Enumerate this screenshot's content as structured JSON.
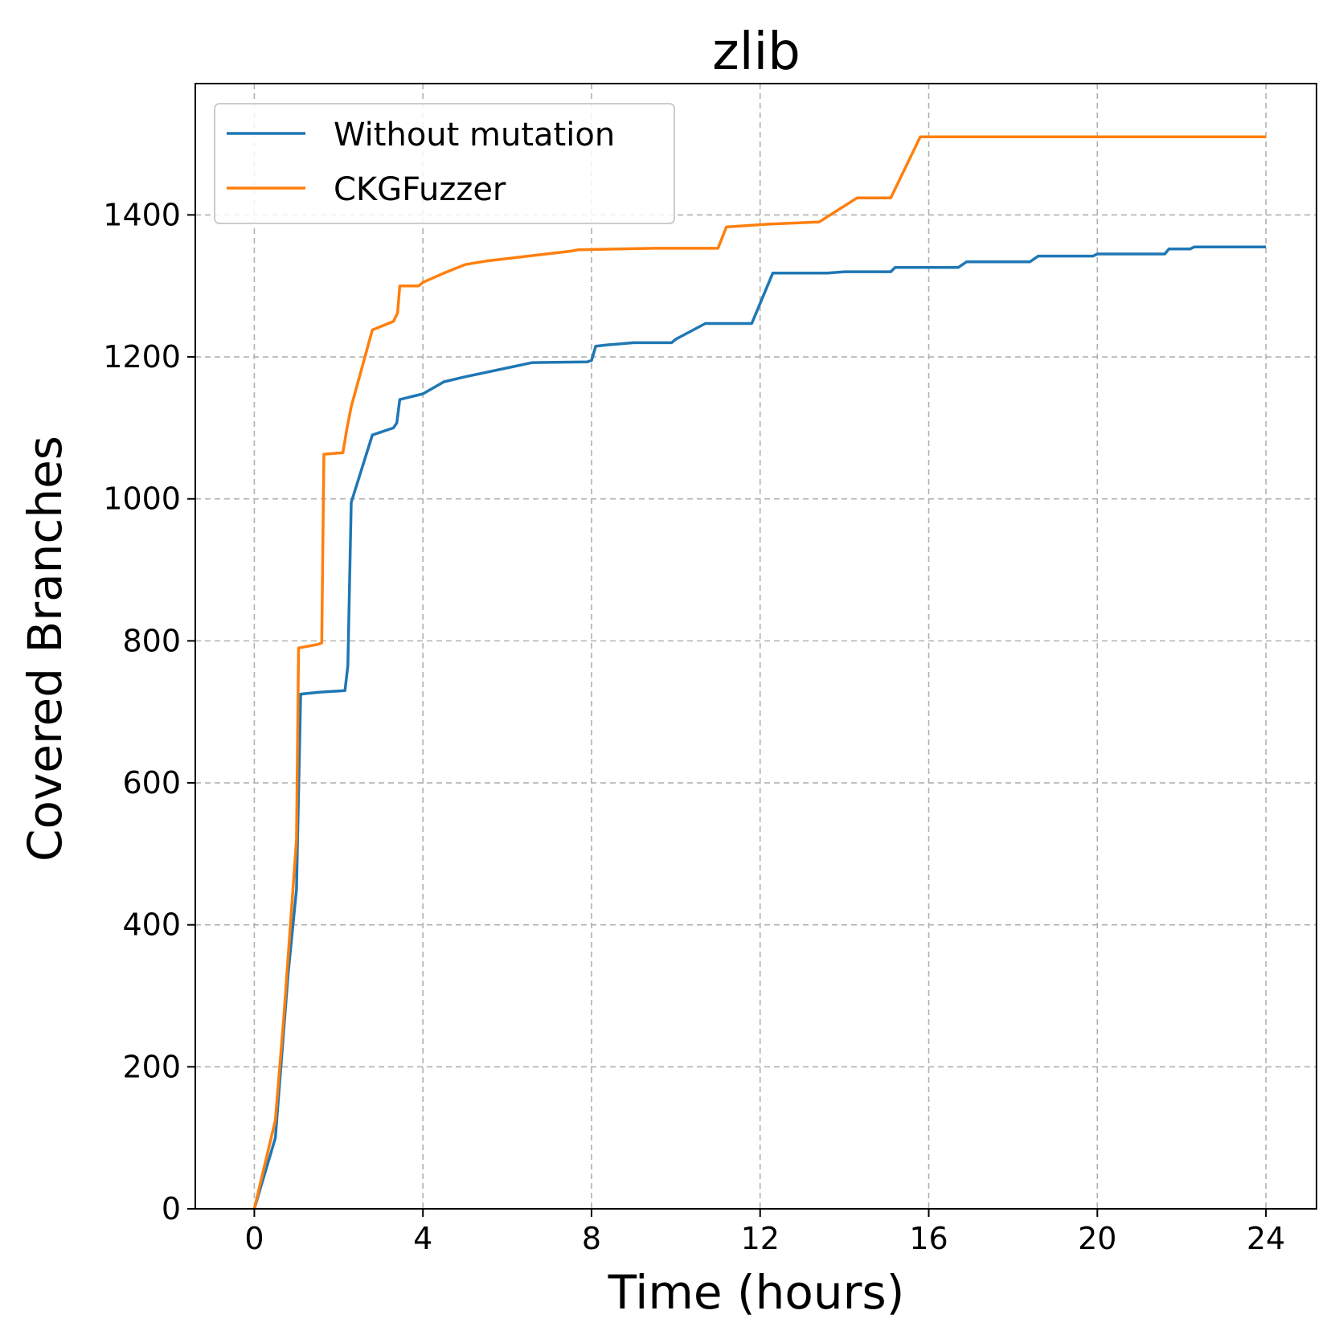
{
  "chart_data": {
    "type": "line",
    "title": "zlib",
    "xlabel": "Time (hours)",
    "ylabel": "Covered Branches",
    "xlim": [
      -1.4,
      25.2
    ],
    "ylim": [
      0,
      1585
    ],
    "xticks": [
      0,
      4,
      8,
      12,
      16,
      20,
      24
    ],
    "yticks": [
      0,
      200,
      400,
      600,
      800,
      1000,
      1200,
      1400
    ],
    "grid": true,
    "legend_position": "top-left",
    "series": [
      {
        "name": "Without mutation",
        "color": "#1f77b4",
        "points": [
          [
            0,
            0
          ],
          [
            0.5,
            100
          ],
          [
            0.8,
            330
          ],
          [
            1.0,
            450
          ],
          [
            1.1,
            725
          ],
          [
            1.6,
            728
          ],
          [
            2.15,
            730
          ],
          [
            2.22,
            765
          ],
          [
            2.3,
            995
          ],
          [
            2.8,
            1090
          ],
          [
            3.3,
            1100
          ],
          [
            3.38,
            1107
          ],
          [
            3.45,
            1140
          ],
          [
            4.0,
            1148
          ],
          [
            4.5,
            1165
          ],
          [
            5.0,
            1172
          ],
          [
            6.6,
            1192
          ],
          [
            7.9,
            1193
          ],
          [
            8.0,
            1195
          ],
          [
            8.1,
            1215
          ],
          [
            8.4,
            1217
          ],
          [
            9.0,
            1220
          ],
          [
            9.9,
            1220
          ],
          [
            10.0,
            1225
          ],
          [
            10.7,
            1247
          ],
          [
            11.8,
            1247
          ],
          [
            12.3,
            1318
          ],
          [
            13.6,
            1318
          ],
          [
            14.0,
            1320
          ],
          [
            15.1,
            1320
          ],
          [
            15.2,
            1326
          ],
          [
            16.7,
            1326
          ],
          [
            16.9,
            1334
          ],
          [
            18.4,
            1334
          ],
          [
            18.5,
            1338
          ],
          [
            18.6,
            1342
          ],
          [
            19.9,
            1342
          ],
          [
            20.0,
            1345
          ],
          [
            21.6,
            1345
          ],
          [
            21.7,
            1352
          ],
          [
            22.2,
            1352
          ],
          [
            22.3,
            1355
          ],
          [
            24.0,
            1355
          ]
        ]
      },
      {
        "name": "CKGFuzzer",
        "color": "#ff7f0e",
        "points": [
          [
            0,
            0
          ],
          [
            0.5,
            125
          ],
          [
            0.7,
            270
          ],
          [
            1.0,
            520
          ],
          [
            1.05,
            790
          ],
          [
            1.5,
            795
          ],
          [
            1.6,
            797
          ],
          [
            1.65,
            1063
          ],
          [
            2.1,
            1065
          ],
          [
            2.2,
            1100
          ],
          [
            2.3,
            1130
          ],
          [
            2.8,
            1238
          ],
          [
            3.3,
            1250
          ],
          [
            3.4,
            1262
          ],
          [
            3.45,
            1300
          ],
          [
            3.9,
            1300
          ],
          [
            4.0,
            1305
          ],
          [
            4.5,
            1318
          ],
          [
            5.0,
            1330
          ],
          [
            5.5,
            1335
          ],
          [
            6.5,
            1342
          ],
          [
            7.5,
            1349
          ],
          [
            7.7,
            1351
          ],
          [
            9.5,
            1353
          ],
          [
            11.0,
            1353
          ],
          [
            11.2,
            1383
          ],
          [
            12.2,
            1387
          ],
          [
            13.4,
            1390
          ],
          [
            14.3,
            1424
          ],
          [
            15.1,
            1424
          ],
          [
            15.8,
            1510
          ],
          [
            24.0,
            1510
          ]
        ]
      }
    ]
  }
}
